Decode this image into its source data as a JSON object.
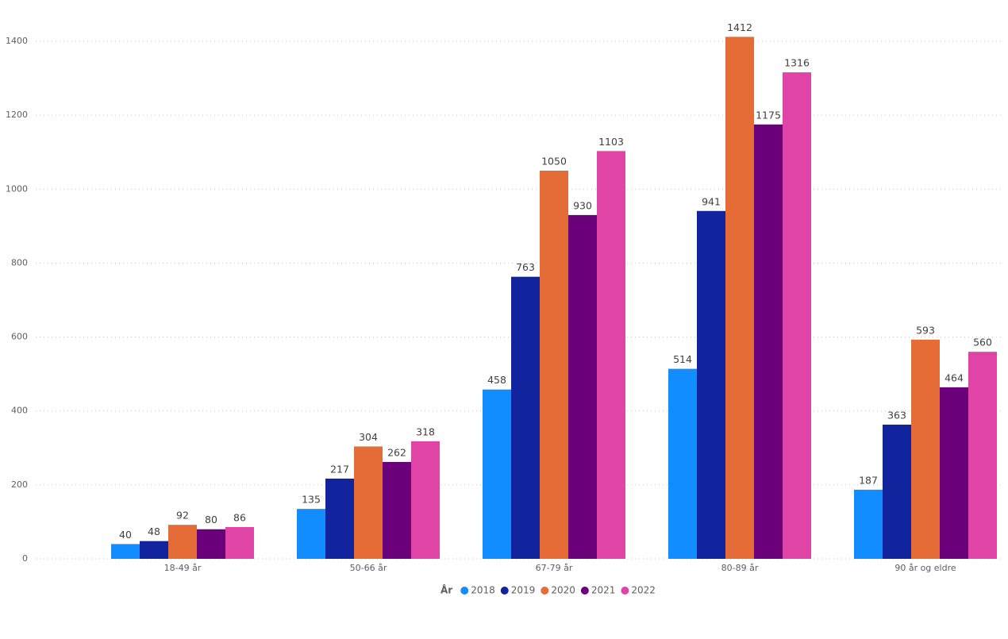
{
  "chart_data": {
    "type": "bar",
    "categories": [
      "18-49 år",
      "50-66 år",
      "67-79 år",
      "80-89 år",
      "90 år og eldre"
    ],
    "legend_title": "År",
    "series": [
      {
        "name": "2018",
        "color": "#118DFF",
        "values": [
          40,
          135,
          458,
          514,
          187
        ]
      },
      {
        "name": "2019",
        "color": "#12239E",
        "values": [
          48,
          217,
          763,
          941,
          363
        ]
      },
      {
        "name": "2020",
        "color": "#E66C37",
        "values": [
          92,
          304,
          1050,
          1412,
          593
        ]
      },
      {
        "name": "2021",
        "color": "#6B007B",
        "values": [
          80,
          262,
          930,
          1175,
          464
        ]
      },
      {
        "name": "2022",
        "color": "#E044A7",
        "values": [
          86,
          318,
          1103,
          1316,
          560
        ]
      }
    ],
    "ylim": [
      0,
      1500
    ],
    "yticks": [
      0,
      200,
      400,
      600,
      800,
      1000,
      1200,
      1400
    ],
    "grid": true,
    "legend": "bottom"
  }
}
